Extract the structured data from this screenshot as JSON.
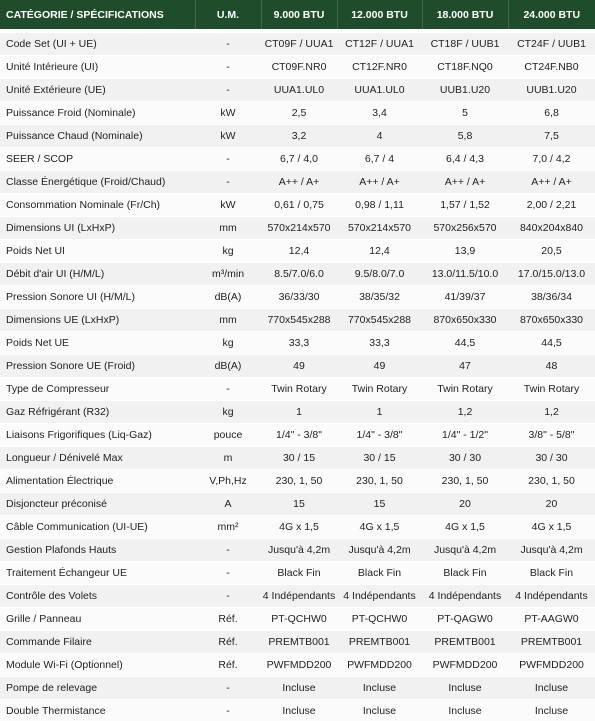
{
  "table": {
    "header": [
      "CATÉGORIE / SPÉCIFICATIONS",
      "U.M.",
      "9.000 BTU",
      "12.000 BTU",
      "18.000 BTU",
      "24.000 BTU"
    ],
    "rows": [
      [
        "Code Set (UI + UE)",
        "-",
        "CT09F / UUA1",
        "CT12F / UUA1",
        "CT18F / UUB1",
        "CT24F / UUB1"
      ],
      [
        "Unité Intérieure (UI)",
        "-",
        "CT09F.NR0",
        "CT12F.NR0",
        "CT18F.NQ0",
        "CT24F.NB0"
      ],
      [
        "Unité Extérieure (UE)",
        "-",
        "UUA1.UL0",
        "UUA1.UL0",
        "UUB1.U20",
        "UUB1.U20"
      ],
      [
        "Puissance Froid (Nominale)",
        "kW",
        "2,5",
        "3,4",
        "5",
        "6,8"
      ],
      [
        "Puissance Chaud (Nominale)",
        "kW",
        "3,2",
        "4",
        "5,8",
        "7,5"
      ],
      [
        "SEER / SCOP",
        "-",
        "6,7 / 4,0",
        "6,7 / 4",
        "6,4 / 4,3",
        "7,0 / 4,2"
      ],
      [
        "Classe Énergétique (Froid/Chaud)",
        "-",
        "A++ / A+",
        "A++ / A+",
        "A++ / A+",
        "A++ / A+"
      ],
      [
        "Consommation Nominale (Fr/Ch)",
        "kW",
        "0,61 / 0,75",
        "0,98 / 1,11",
        "1,57 / 1,52",
        "2,00 / 2,21"
      ],
      [
        "Dimensions UI (LxHxP)",
        "mm",
        "570x214x570",
        "570x214x570",
        "570x256x570",
        "840x204x840"
      ],
      [
        "Poids Net UI",
        "kg",
        "12,4",
        "12,4",
        "13,9",
        "20,5"
      ],
      [
        "Débit d'air UI (H/M/L)",
        "m³/min",
        "8.5/7.0/6.0",
        "9.5/8.0/7.0",
        "13.0/11.5/10.0",
        "17.0/15.0/13.0"
      ],
      [
        "Pression Sonore UI (H/M/L)",
        "dB(A)",
        "36/33/30",
        "38/35/32",
        "41/39/37",
        "38/36/34"
      ],
      [
        "Dimensions UE (LxHxP)",
        "mm",
        "770x545x288",
        "770x545x288",
        "870x650x330",
        "870x650x330"
      ],
      [
        "Poids Net UE",
        "kg",
        "33,3",
        "33,3",
        "44,5",
        "44,5"
      ],
      [
        "Pression Sonore UE (Froid)",
        "dB(A)",
        "49",
        "49",
        "47",
        "48"
      ],
      [
        "Type de Compresseur",
        "-",
        "Twin Rotary",
        "Twin Rotary",
        "Twin Rotary",
        "Twin Rotary"
      ],
      [
        "Gaz Réfrigérant (R32)",
        "kg",
        "1",
        "1",
        "1,2",
        "1,2"
      ],
      [
        "Liaisons Frigorifiques (Liq-Gaz)",
        "pouce",
        "1/4\" - 3/8\"",
        "1/4\" - 3/8\"",
        "1/4\" - 1/2\"",
        "3/8\" - 5/8\""
      ],
      [
        "Longueur / Dénivelé Max",
        "m",
        "30 / 15",
        "30 / 15",
        "30 / 30",
        "30 / 30"
      ],
      [
        "Alimentation Électrique",
        "V,Ph,Hz",
        "230, 1, 50",
        "230, 1, 50",
        "230, 1, 50",
        "230, 1, 50"
      ],
      [
        "Disjoncteur préconisé",
        "A",
        "15",
        "15",
        "20",
        "20"
      ],
      [
        "Câble Communication (UI-UE)",
        "mm²",
        "4G x 1,5",
        "4G x 1,5",
        "4G x 1,5",
        "4G x 1,5"
      ],
      [
        "Gestion Plafonds Hauts",
        "-",
        "Jusqu'à 4,2m",
        "Jusqu'à 4,2m",
        "Jusqu'à 4,2m",
        "Jusqu'à 4,2m"
      ],
      [
        "Traitement Échangeur UE",
        "-",
        "Black Fin",
        "Black Fin",
        "Black Fin",
        "Black Fin"
      ],
      [
        "Contrôle des Volets",
        "-",
        "4 Indépendants",
        "4 Indépendants",
        "4 Indépendants",
        "4 Indépendants"
      ],
      [
        "Grille / Panneau",
        "Réf.",
        "PT-QCHW0",
        "PT-QCHW0",
        "PT-QAGW0",
        "PT-AAGW0"
      ],
      [
        "Commande Filaire",
        "Réf.",
        "PREMTB001",
        "PREMTB001",
        "PREMTB001",
        "PREMTB001"
      ],
      [
        "Module Wi-Fi (Optionnel)",
        "Réf.",
        "PWFMDD200",
        "PWFMDD200",
        "PWFMDD200",
        "PWFMDD200"
      ],
      [
        "Pompe de relevage",
        "-",
        "Incluse",
        "Incluse",
        "Incluse",
        "Incluse"
      ],
      [
        "Double Thermistance",
        "-",
        "Incluse",
        "Incluse",
        "Incluse",
        "Incluse"
      ]
    ]
  }
}
